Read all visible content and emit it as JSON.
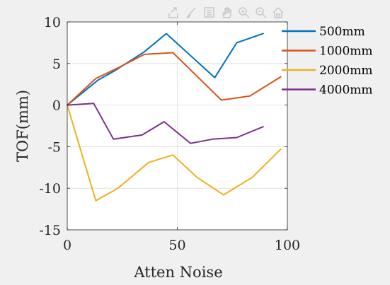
{
  "toolbar": {
    "icons": [
      "export-icon",
      "brush-icon",
      "data-tips-icon",
      "pan-hand-icon",
      "zoom-in-icon",
      "zoom-out-icon",
      "home-icon"
    ]
  },
  "chart_data": {
    "type": "line",
    "title": "",
    "xlabel": "Atten Noise",
    "ylabel": "TOF(mm)",
    "xlim": [
      0,
      100
    ],
    "ylim": [
      -15,
      10
    ],
    "xticks": [
      0,
      50,
      100
    ],
    "yticks": [
      -15,
      -10,
      -5,
      0,
      5,
      10
    ],
    "grid": true,
    "legend_position": "top-right outside",
    "series": [
      {
        "name": "500mm",
        "color": "#0072BD",
        "x": [
          0,
          14,
          22,
          35,
          45,
          67,
          77,
          89
        ],
        "y": [
          0,
          3,
          4.2,
          6.4,
          8.6,
          3.3,
          7.5,
          8.6
        ]
      },
      {
        "name": "1000mm",
        "color": "#D95319",
        "x": [
          0,
          13,
          24,
          35,
          48,
          70,
          83,
          97
        ],
        "y": [
          0,
          3.2,
          4.6,
          6.1,
          6.3,
          0.6,
          1.1,
          3.4
        ]
      },
      {
        "name": "2000mm",
        "color": "#EDB120",
        "x": [
          0,
          13,
          23,
          37,
          48,
          59,
          71,
          84,
          97
        ],
        "y": [
          0,
          -11.5,
          -10,
          -6.9,
          -6,
          -8.7,
          -10.8,
          -8.7,
          -5.3
        ]
      },
      {
        "name": "4000mm",
        "color": "#7E2F8E",
        "x": [
          0,
          12,
          21,
          34,
          44,
          56,
          66,
          77,
          89
        ],
        "y": [
          0,
          0.2,
          -4.1,
          -3.6,
          -2,
          -4.6,
          -4.1,
          -3.9,
          -2.6
        ]
      }
    ]
  }
}
